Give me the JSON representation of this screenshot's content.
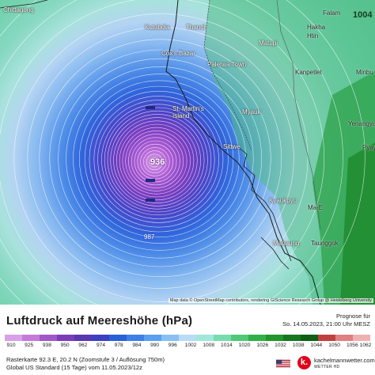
{
  "map": {
    "places": [
      {
        "name": "Chittagong",
        "class": "place"
      },
      {
        "name": "Kutubdia",
        "class": "place"
      },
      {
        "name": "Thandi",
        "class": "place"
      },
      {
        "name": "Cox's Bazar",
        "class": "place"
      },
      {
        "name": "Paletwa Town",
        "class": "place"
      },
      {
        "name": "Matupi",
        "class": "place"
      },
      {
        "name": "Hakha",
        "class": "place"
      },
      {
        "name": "Falam",
        "class": "place"
      },
      {
        "name": "Htin",
        "class": "place"
      },
      {
        "name": "Kanpetlet",
        "class": "place"
      },
      {
        "name": "Minbu",
        "class": "place"
      },
      {
        "name": "St. Martin's Island",
        "class": "place"
      },
      {
        "name": "Myauk",
        "class": "place"
      },
      {
        "name": "Sittwe",
        "class": "place"
      },
      {
        "name": "Yenangyaung",
        "class": "place"
      },
      {
        "name": "Pyay",
        "class": "place"
      },
      {
        "name": "Kyaukpyu",
        "class": "place"
      },
      {
        "name": "Ma-E",
        "class": "place"
      },
      {
        "name": "Manaung",
        "class": "place"
      },
      {
        "name": "Taunggok",
        "class": "place"
      }
    ],
    "center_pressure": "936",
    "isobar_label": "987",
    "corner_label": "1004",
    "attribution": "Map data © OpenStreetMap contributors, rendering GIScience Research Group @ Heidelberg University"
  },
  "footer": {
    "title": "Luftdruck auf Meereshöhe (hPa)",
    "forecast_label": "Prognose für",
    "forecast_time": "So. 14.05.2023, 21:00 Uhr MESZ",
    "legend_ticks": [
      "910",
      "925",
      "938",
      "950",
      "962",
      "974",
      "978",
      "984",
      "990",
      "996",
      "1002",
      "1008",
      "1014",
      "1020",
      "1026",
      "1032",
      "1038",
      "1044",
      "1050",
      "1056",
      "1062"
    ],
    "info_line1": "Rasterkarte 92.3 E, 20.2 N (Zoomstufe 3 / Auflösung 750m)",
    "info_line2": "Global US Standard (15 Tage) vom 11.05.2023/12z",
    "brand_name": "kachelmannwetter.com",
    "brand_sub": "WETTER HD",
    "brand_letter": "k."
  },
  "colors": {
    "legend": [
      "#d8a0e8",
      "#c47ad8",
      "#a058c8",
      "#7c3cb8",
      "#5a36b0",
      "#3a40c0",
      "#2860d8",
      "#3c80e8",
      "#5aa0f0",
      "#88c0f4",
      "#b8dcf6",
      "#a0e8d8",
      "#78dcb0",
      "#50c878",
      "#30b048",
      "#20962c",
      "#157820",
      "#0e5e16",
      "#c04040",
      "#e08080",
      "#f0b0b0"
    ]
  }
}
